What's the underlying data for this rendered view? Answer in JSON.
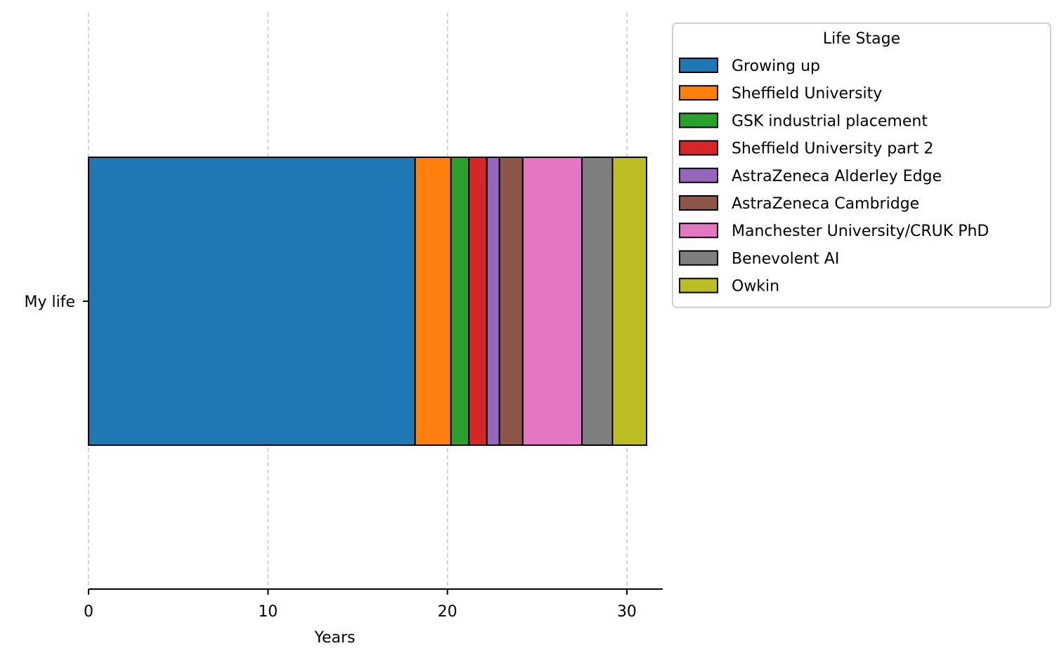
{
  "chart_data": {
    "type": "bar",
    "orientation": "horizontal",
    "stacked": true,
    "category": "My life",
    "xlabel": "Years",
    "ylabel": "",
    "xlim": [
      0,
      32
    ],
    "xticks": [
      0,
      10,
      20,
      30
    ],
    "grid": "x-dashed",
    "legend_title": "Life Stage",
    "legend_position": "outside-top-right",
    "series": [
      {
        "name": "Growing up",
        "value": 18.2,
        "color": "#1f77b4"
      },
      {
        "name": "Sheffield University",
        "value": 2.0,
        "color": "#ff7f0e"
      },
      {
        "name": "GSK industrial placement",
        "value": 1.0,
        "color": "#2ca02c"
      },
      {
        "name": "Sheffield University part 2",
        "value": 1.0,
        "color": "#d62728"
      },
      {
        "name": "AstraZeneca Alderley Edge",
        "value": 0.7,
        "color": "#9467bd"
      },
      {
        "name": "AstraZeneca Cambridge",
        "value": 1.3,
        "color": "#8c564b"
      },
      {
        "name": "Manchester University/CRUK PhD",
        "value": 3.3,
        "color": "#e377c2"
      },
      {
        "name": "Benevolent AI",
        "value": 1.7,
        "color": "#7f7f7f"
      },
      {
        "name": "Owkin",
        "value": 1.9,
        "color": "#bcbd22"
      }
    ]
  }
}
